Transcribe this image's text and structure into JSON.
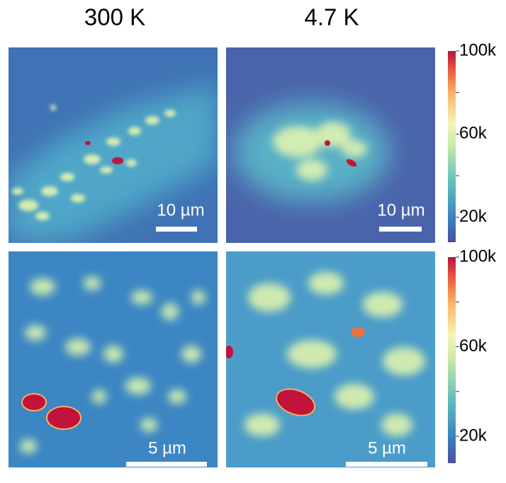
{
  "columns": [
    "300 K",
    "4.7 K"
  ],
  "panels": [
    {
      "scale_bar": "10 µm"
    },
    {
      "scale_bar": "10 µm"
    },
    {
      "scale_bar": "5 µm"
    },
    {
      "scale_bar": "5 µm"
    }
  ],
  "colorbars": [
    {
      "lim": [
        8000,
        100000
      ],
      "ticks": [
        {
          "value": 20000,
          "label": "20k"
        },
        {
          "value": 60000,
          "label": "60k"
        },
        {
          "value": 100000,
          "label": "100k"
        }
      ],
      "minor_ticks": [
        40000,
        80000
      ]
    },
    {
      "lim": [
        8000,
        100000
      ],
      "ticks": [
        {
          "value": 20000,
          "label": "20k"
        },
        {
          "value": 60000,
          "label": "60k"
        },
        {
          "value": 100000,
          "label": "100k"
        }
      ],
      "minor_ticks": [
        40000,
        80000
      ]
    }
  ]
}
